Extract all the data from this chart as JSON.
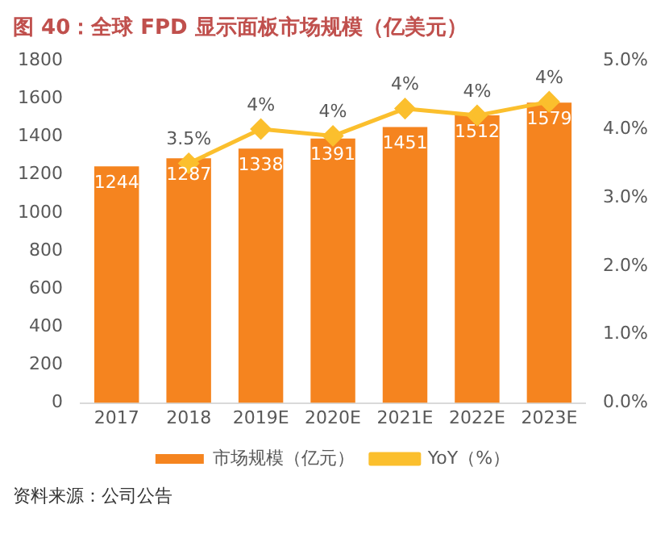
{
  "chart_data": {
    "type": "bar",
    "title": "图 40：全球 FPD 显示面板市场规模（亿美元）",
    "categories": [
      "2017",
      "2018",
      "2019E",
      "2020E",
      "2021E",
      "2022E",
      "2023E"
    ],
    "series": [
      {
        "name": "市场规模（亿元）",
        "color": "#f5841f",
        "values": [
          1244,
          1287,
          1338,
          1391,
          1451,
          1512,
          1579
        ],
        "value_labels": [
          "1244",
          "1287",
          "1338",
          "1391",
          "1451",
          "1512",
          "1579"
        ]
      },
      {
        "name": "YoY（%）",
        "type": "line",
        "axis": "y2",
        "color": "#fbbf2d",
        "marker": "diamond",
        "values": [
          null,
          3.5,
          4.0,
          3.9,
          4.3,
          4.2,
          4.4
        ],
        "value_labels": [
          null,
          "3.5%",
          "4%",
          "4%",
          "4%",
          "4%",
          "4%"
        ]
      }
    ],
    "ylim": [
      0,
      1800
    ],
    "yticks": [
      0,
      200,
      400,
      600,
      800,
      1000,
      1200,
      1400,
      1600,
      1800
    ],
    "y2lim": [
      0,
      5
    ],
    "y2ticks": [
      {
        "value": 0,
        "label": "0.0%"
      },
      {
        "value": 1,
        "label": "1.0%"
      },
      {
        "value": 2,
        "label": "2.0%"
      },
      {
        "value": 3,
        "label": "3.0%"
      },
      {
        "value": 4,
        "label": "4.0%"
      },
      {
        "value": 5,
        "label": "5.0%"
      }
    ],
    "legend": "bottom",
    "grid": false,
    "annotations": [
      "资料来源：公司公告"
    ]
  }
}
